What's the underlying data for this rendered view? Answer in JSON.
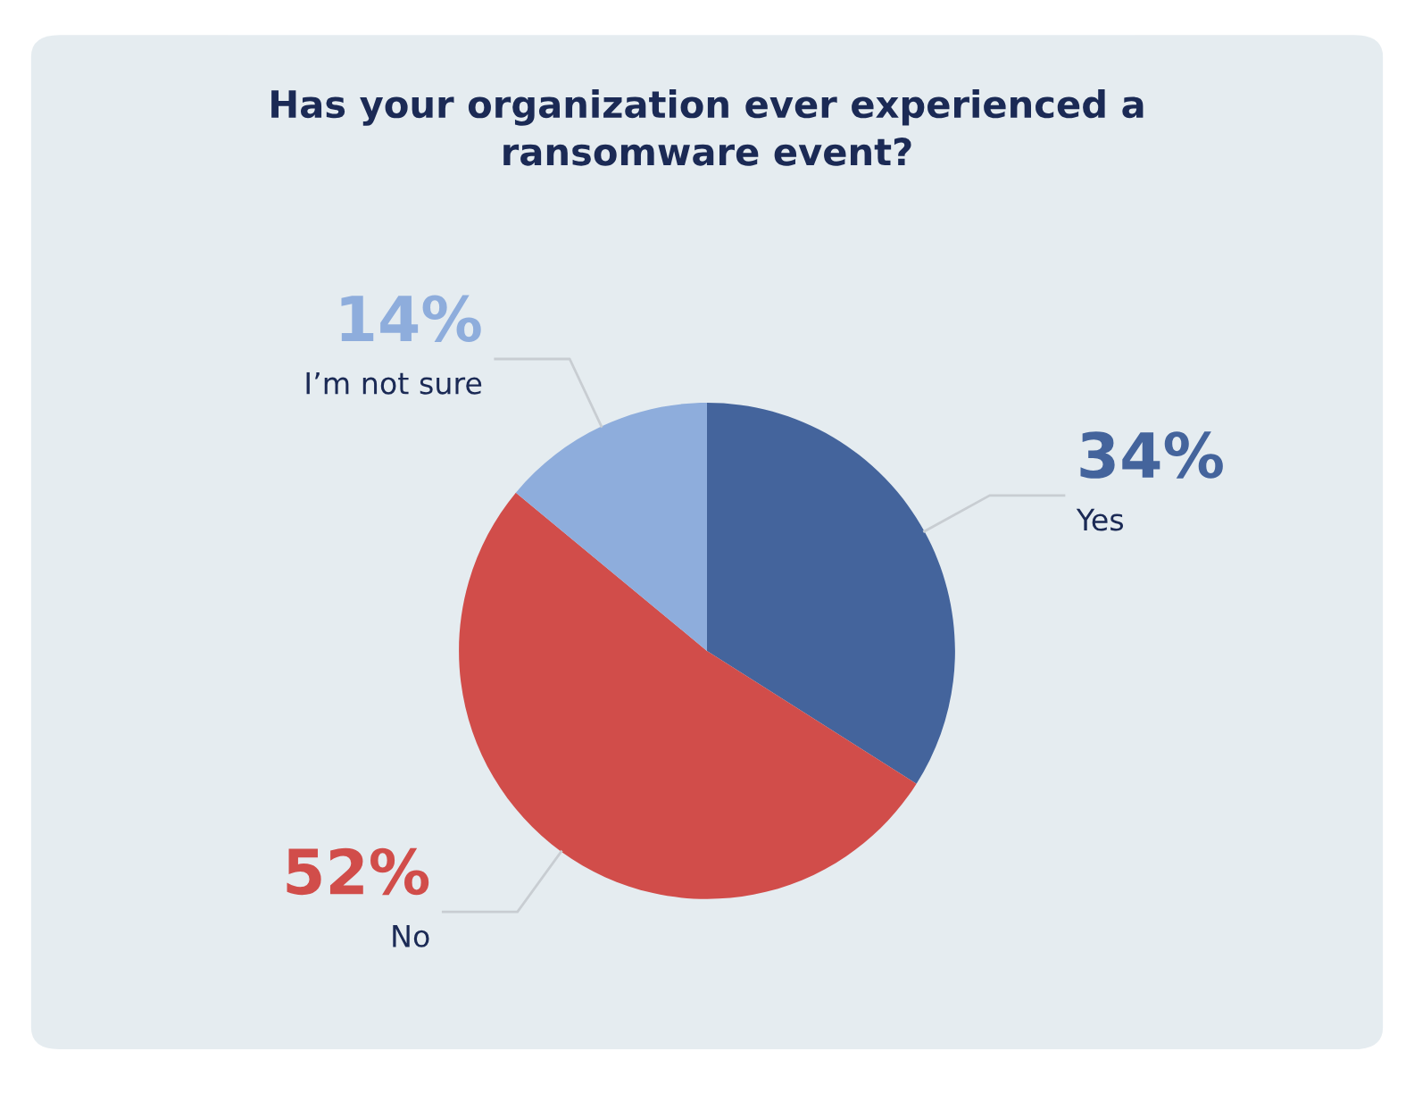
{
  "chart_data": {
    "type": "pie",
    "title": "Has your organization ever experienced a\nransomware event?",
    "categories": [
      "Yes",
      "No",
      "I’m not sure"
    ],
    "values": [
      34,
      52,
      14
    ],
    "colors": [
      "#44649c",
      "#d14d4a",
      "#8eaddc"
    ],
    "value_labels": [
      "34%",
      "52%",
      "14%"
    ]
  }
}
